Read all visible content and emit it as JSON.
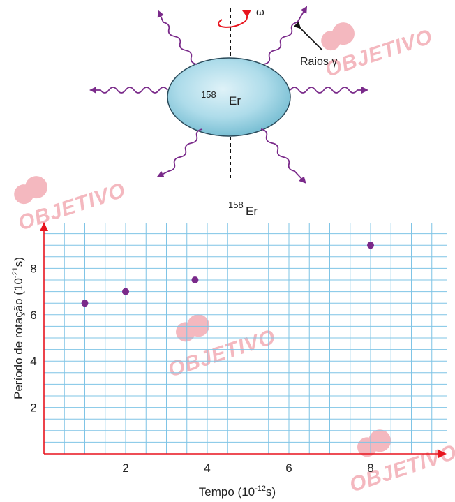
{
  "diagram": {
    "nucleus_mass_number": "158",
    "nucleus_symbol": "Er",
    "omega_label": "ω",
    "gamma_label": "Raios γ",
    "colors": {
      "nucleus_fill": "#a9dbe8",
      "nucleus_edge": "#2a4a5a",
      "wave": "#7a2a8a",
      "omega_arrow": "#e8141e"
    }
  },
  "chart_title": {
    "mass_number": "158",
    "symbol": "Er"
  },
  "watermark": {
    "text": "OBJETIVO",
    "color": "#f4b8bf"
  },
  "chart_data": {
    "type": "scatter",
    "x": [
      1,
      2,
      3.7,
      8
    ],
    "y": [
      6.5,
      7.0,
      7.5,
      9.0
    ],
    "xticks": [
      "2",
      "4",
      "6",
      "8"
    ],
    "yticks": [
      "2",
      "4",
      "6",
      "8"
    ],
    "xlim": [
      0,
      9
    ],
    "ylim": [
      0,
      10
    ],
    "xlabel_base": "Tempo (10",
    "xlabel_exp": "-12",
    "xlabel_tail": "s)",
    "ylabel_base": "Período de rotação (10",
    "ylabel_exp": "-21",
    "ylabel_tail": "s)",
    "grid": true,
    "colors": {
      "grid": "#7fc4e6",
      "axes": "#e8141e",
      "points": "#7a2a8a"
    }
  }
}
